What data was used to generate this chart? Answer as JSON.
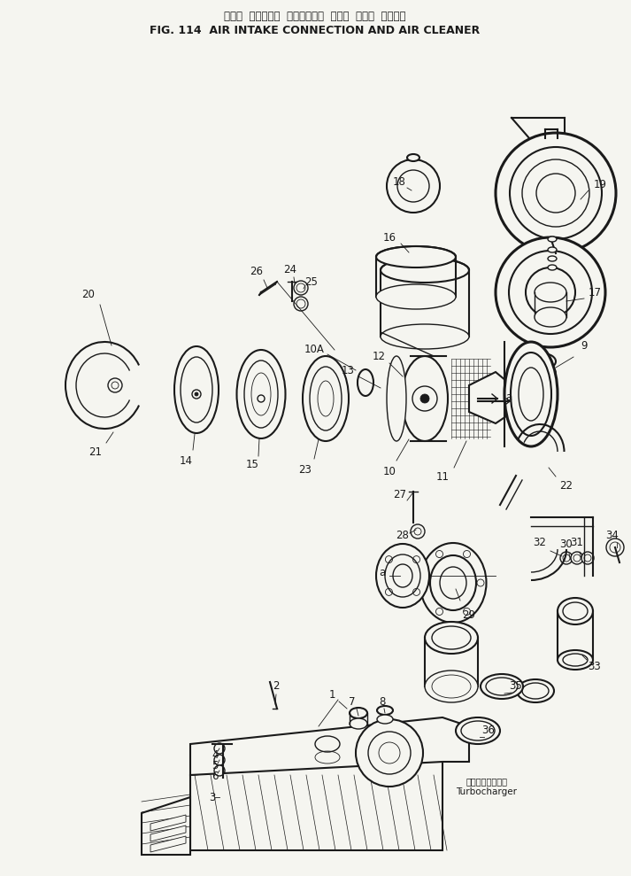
{
  "title_japanese": "エアー  インテーク  コネクション  および  エアー  クリーナ",
  "title_english": "FIG. 114  AIR INTAKE CONNECTION AND AIR CLEANER",
  "background_color": "#f5f5f0",
  "line_color": "#1a1a1a",
  "fig_width": 7.13,
  "fig_height": 9.89,
  "dpi": 100,
  "turbocharger_jp": "ターボチャージャ",
  "turbocharger_en": "Turbocharger"
}
